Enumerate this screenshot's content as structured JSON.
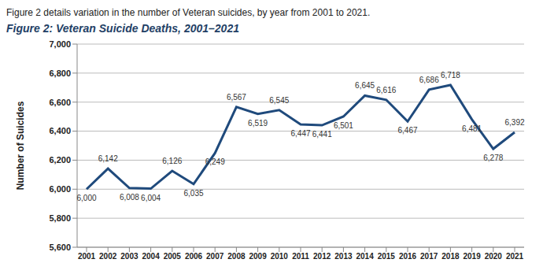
{
  "chart_data": {
    "type": "line",
    "subtitle": "Figure 2 details variation in the number of Veteran suicides, by year from 2001 to 2021.",
    "title": "Figure 2: Veteran Suicide Deaths, 2001–2021",
    "y_label": "Number of Suicides",
    "categories": [
      "2001",
      "2002",
      "2003",
      "2004",
      "2005",
      "2006",
      "2007",
      "2008",
      "2009",
      "2010",
      "2011",
      "2012",
      "2013",
      "2014",
      "2015",
      "2016",
      "2017",
      "2018",
      "2019",
      "2020",
      "2021"
    ],
    "values": [
      6000,
      6142,
      6008,
      6004,
      6126,
      6035,
      6249,
      6567,
      6519,
      6545,
      6447,
      6441,
      6501,
      6645,
      6616,
      6467,
      6686,
      6718,
      6481,
      6278,
      6392
    ],
    "value_labels": [
      "6,000",
      "6,142",
      "6,008",
      "6,004",
      "6,126",
      "6,035",
      "6,249",
      "6,567",
      "6,519",
      "6,545",
      "6,447",
      "6,441",
      "6,501",
      "6,645",
      "6,616",
      "6,467",
      "6,686",
      "6,718",
      "6,481",
      "6,278",
      "6,392"
    ],
    "color": "#1f4a7c",
    "ylim": [
      5600,
      7000
    ],
    "yticks": [
      {
        "value": 5600,
        "label": "5,600"
      },
      {
        "value": 5800,
        "label": "5,800"
      },
      {
        "value": 6000,
        "label": "6,000"
      },
      {
        "value": 6200,
        "label": "6,200"
      },
      {
        "value": 6400,
        "label": "6,400"
      },
      {
        "value": 6600,
        "label": "6,600"
      },
      {
        "value": 6800,
        "label": "6,800"
      },
      {
        "value": 7000,
        "label": "7,000"
      }
    ],
    "grid": true,
    "data_labels": true
  }
}
